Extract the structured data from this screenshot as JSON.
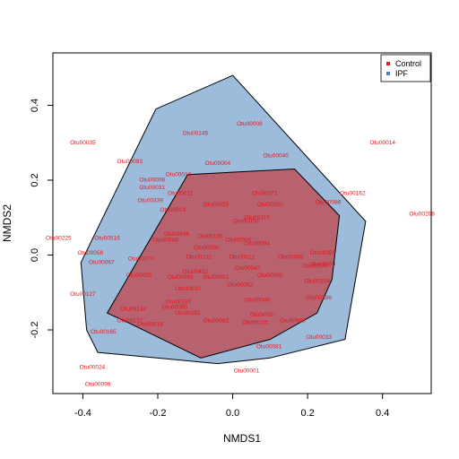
{
  "chart_data": {
    "type": "scatter",
    "xlabel": "NMDS1",
    "ylabel": "NMDS2",
    "xlim": [
      -0.48,
      0.53
    ],
    "ylim": [
      -0.37,
      0.54
    ],
    "xticks": [
      -0.4,
      -0.2,
      0.0,
      0.2,
      0.4
    ],
    "yticks": [
      -0.2,
      0.0,
      0.2,
      0.4
    ],
    "xtick_labels": [
      "-0.4",
      "-0.2",
      "0.0",
      "0.2",
      "0.4"
    ],
    "ytick_labels": [
      "-0.2",
      "0.0",
      "0.2",
      "0.4"
    ],
    "legend": {
      "placement": "top-right",
      "items": [
        {
          "label": "Control",
          "color": "#e41a1c"
        },
        {
          "label": "IPF",
          "color": "#4f81bd"
        }
      ]
    },
    "hulls": [
      {
        "name": "IPF",
        "fill": "#9dbcdc",
        "stroke": "#000000",
        "points": [
          [
            0.0,
            0.48
          ],
          [
            0.355,
            0.09
          ],
          [
            0.3,
            -0.225
          ],
          [
            0.1,
            -0.275
          ],
          [
            -0.04,
            -0.29
          ],
          [
            -0.36,
            -0.26
          ],
          [
            -0.39,
            -0.2
          ],
          [
            -0.405,
            -0.02
          ],
          [
            -0.205,
            0.39
          ]
        ]
      },
      {
        "name": "Control",
        "fill": "#b7626e",
        "stroke": "#000000",
        "points": [
          [
            -0.12,
            0.215
          ],
          [
            0.165,
            0.23
          ],
          [
            0.285,
            0.105
          ],
          [
            0.265,
            -0.065
          ],
          [
            0.225,
            -0.155
          ],
          [
            0.1,
            -0.225
          ],
          [
            -0.085,
            -0.275
          ],
          [
            -0.28,
            -0.18
          ],
          [
            -0.335,
            -0.155
          ]
        ]
      }
    ],
    "labels_color": "#e8141b",
    "labels": [
      {
        "x": 0.4,
        "y": 0.3,
        "text": "Otu00014"
      },
      {
        "x": -0.4,
        "y": 0.3,
        "text": "Otu00035"
      },
      {
        "x": -0.1,
        "y": 0.325,
        "text": "Otu00145"
      },
      {
        "x": 0.045,
        "y": 0.35,
        "text": "Otu00008"
      },
      {
        "x": 0.505,
        "y": 0.11,
        "text": "Otu00208"
      },
      {
        "x": -0.465,
        "y": 0.045,
        "text": "Otu00225"
      },
      {
        "x": -0.335,
        "y": 0.045,
        "text": "Otu00516"
      },
      {
        "x": -0.38,
        "y": 0.005,
        "text": "Otu00058"
      },
      {
        "x": -0.35,
        "y": -0.02,
        "text": "Otu00067"
      },
      {
        "x": -0.4,
        "y": -0.105,
        "text": "Otu00127"
      },
      {
        "x": -0.345,
        "y": -0.205,
        "text": "Otu00165"
      },
      {
        "x": -0.375,
        "y": -0.3,
        "text": "Otu00024"
      },
      {
        "x": -0.36,
        "y": -0.345,
        "text": "Otu00096"
      },
      {
        "x": 0.037,
        "y": -0.31,
        "text": "Otu00001"
      },
      {
        "x": 0.097,
        "y": -0.245,
        "text": "Otu00081"
      },
      {
        "x": 0.23,
        "y": -0.22,
        "text": "Otu00033"
      },
      {
        "x": 0.115,
        "y": 0.265,
        "text": "Otu00040"
      },
      {
        "x": 0.32,
        "y": 0.165,
        "text": "Otu00162"
      },
      {
        "x": 0.255,
        "y": 0.14,
        "text": "Otu00086"
      },
      {
        "x": 0.24,
        "y": 0.005,
        "text": "Otu00059"
      },
      {
        "x": 0.24,
        "y": -0.025,
        "text": "Otu00039"
      },
      {
        "x": 0.225,
        "y": -0.07,
        "text": "Otu00258"
      },
      {
        "x": 0.23,
        "y": -0.115,
        "text": "Otu00386"
      },
      {
        "x": -0.275,
        "y": 0.25,
        "text": "Otu00093"
      },
      {
        "x": -0.04,
        "y": 0.245,
        "text": "Otu00004"
      },
      {
        "x": -0.145,
        "y": 0.215,
        "text": "Otu00010"
      },
      {
        "x": -0.215,
        "y": 0.2,
        "text": "Otu00008"
      },
      {
        "x": -0.215,
        "y": 0.18,
        "text": "Otu00031"
      },
      {
        "x": -0.14,
        "y": 0.165,
        "text": "Otu00011"
      },
      {
        "x": -0.22,
        "y": 0.145,
        "text": "Otu00339"
      },
      {
        "x": -0.16,
        "y": 0.12,
        "text": "Otu00019"
      },
      {
        "x": -0.045,
        "y": 0.135,
        "text": "Otu00025"
      },
      {
        "x": 0.085,
        "y": 0.165,
        "text": "Otu00071"
      },
      {
        "x": 0.1,
        "y": 0.135,
        "text": "Otu00200"
      },
      {
        "x": 0.065,
        "y": 0.1,
        "text": "Otu00315"
      },
      {
        "x": 0.035,
        "y": 0.09,
        "text": "Otu00050"
      },
      {
        "x": -0.15,
        "y": 0.055,
        "text": "Otu00046"
      },
      {
        "x": -0.18,
        "y": 0.04,
        "text": "Otu00048"
      },
      {
        "x": -0.06,
        "y": 0.05,
        "text": "Otu00185"
      },
      {
        "x": 0.015,
        "y": 0.04,
        "text": "Otu00006"
      },
      {
        "x": -0.07,
        "y": 0.02,
        "text": "Otu00250"
      },
      {
        "x": 0.065,
        "y": 0.03,
        "text": "Otu00094"
      },
      {
        "x": -0.09,
        "y": -0.005,
        "text": "Otu00132"
      },
      {
        "x": 0.025,
        "y": -0.005,
        "text": "Otu00012"
      },
      {
        "x": -0.245,
        "y": -0.01,
        "text": "Otu00073"
      },
      {
        "x": 0.155,
        "y": -0.005,
        "text": "Otu00083"
      },
      {
        "x": -0.1,
        "y": -0.045,
        "text": "Otu00422"
      },
      {
        "x": 0.04,
        "y": -0.035,
        "text": "Otu00047"
      },
      {
        "x": 0.1,
        "y": -0.055,
        "text": "Otu00095"
      },
      {
        "x": 0.22,
        "y": -0.03,
        "text": "Otu00036"
      },
      {
        "x": -0.25,
        "y": -0.055,
        "text": "Otu00035"
      },
      {
        "x": -0.14,
        "y": -0.06,
        "text": "Otu00069"
      },
      {
        "x": -0.045,
        "y": -0.06,
        "text": "Otu00051"
      },
      {
        "x": -0.12,
        "y": -0.09,
        "text": "Otu00010"
      },
      {
        "x": 0.02,
        "y": -0.08,
        "text": "Otu00082"
      },
      {
        "x": -0.145,
        "y": -0.125,
        "text": "Otu00197"
      },
      {
        "x": 0.065,
        "y": -0.12,
        "text": "Otu00046"
      },
      {
        "x": -0.265,
        "y": -0.145,
        "text": "Otu00134"
      },
      {
        "x": -0.155,
        "y": -0.14,
        "text": "Otu00090"
      },
      {
        "x": -0.12,
        "y": -0.155,
        "text": "Otu00151"
      },
      {
        "x": 0.08,
        "y": -0.16,
        "text": "Otu00027"
      },
      {
        "x": -0.275,
        "y": -0.175,
        "text": "Otu00177"
      },
      {
        "x": -0.22,
        "y": -0.185,
        "text": "Otu00016"
      },
      {
        "x": -0.045,
        "y": -0.175,
        "text": "Otu00082"
      },
      {
        "x": 0.06,
        "y": -0.18,
        "text": "Otu00155"
      },
      {
        "x": 0.16,
        "y": -0.175,
        "text": "Otu00068"
      }
    ]
  }
}
